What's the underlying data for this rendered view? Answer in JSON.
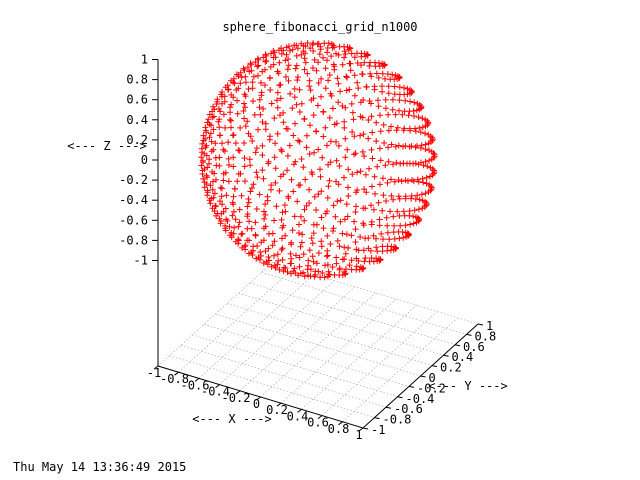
{
  "chart_data": {
    "type": "scatter",
    "title": "sphere_fibonacci_grid_n1000",
    "timestamp": "Thu May 14 13:36:49 2015",
    "xlabel": "<--- X --->",
    "ylabel": "<--- Y --->",
    "zlabel": "<--- Z --->",
    "projection": "3d",
    "view": "gnuplot splot default",
    "marker": "+",
    "color": "#ff0000",
    "grid": true,
    "xlim": [
      -1,
      1
    ],
    "ylim": [
      -1,
      1
    ],
    "zlim": [
      -1,
      1
    ],
    "x_ticks": [
      "-1",
      "-0.8",
      "-0.6",
      "-0.4",
      "-0.2",
      "0",
      "0.2",
      "0.4",
      "0.6",
      "0.8",
      "1"
    ],
    "y_ticks": [
      "-1",
      "-0.8",
      "-0.6",
      "-0.4",
      "-0.2",
      "0",
      "0.2",
      "0.4",
      "0.6",
      "0.8",
      "1"
    ],
    "z_ticks": [
      "1",
      "0.8",
      "0.6",
      "0.4",
      "0.2",
      "0",
      "-0.2",
      "-0.4",
      "-0.6",
      "-0.8",
      "-1"
    ],
    "series": [
      {
        "generator": "fibonacci_sphere",
        "n": 1000,
        "radius": 1,
        "center": [
          0,
          0,
          0
        ]
      }
    ]
  }
}
